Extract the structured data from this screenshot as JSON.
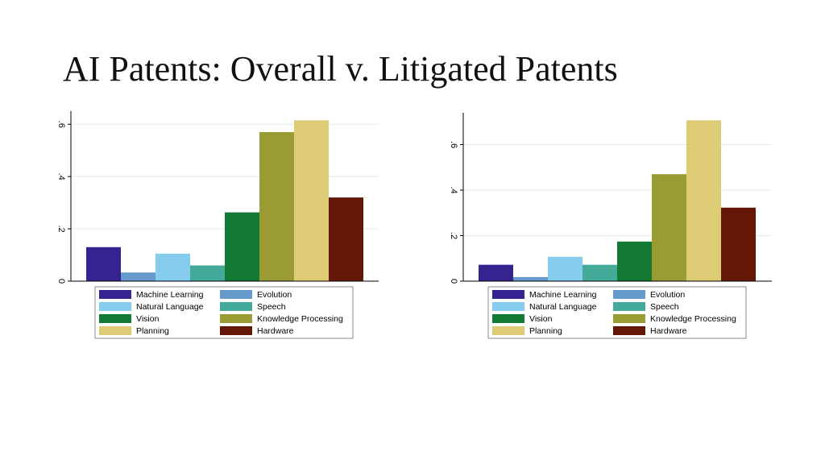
{
  "slide": {
    "title": "AI Patents: Overall v. Litigated Patents"
  },
  "colors": {
    "Machine Learning": "#35248f",
    "Evolution": "#6699cc",
    "Natural Language": "#86ccee",
    "Speech": "#44aa99",
    "Vision": "#137a36",
    "Knowledge Processing": "#9b9b33",
    "Planning": "#ddcb76",
    "Hardware": "#651707"
  },
  "chart_data": [
    {
      "type": "bar",
      "categories": [
        "Machine Learning",
        "Evolution",
        "Natural Language",
        "Speech",
        "Vision",
        "Knowledge Processing",
        "Planning",
        "Hardware"
      ],
      "values": [
        0.13,
        0.033,
        0.105,
        0.06,
        0.263,
        0.57,
        0.615,
        0.32
      ],
      "ylim": [
        0,
        0.65
      ],
      "yticks": [
        0,
        0.2,
        0.4,
        0.6
      ],
      "ytick_labels": [
        "0",
        ".2",
        ".4",
        ".6"
      ],
      "grid": true,
      "legend": "bottom",
      "legend_labels": [
        "Machine Learning",
        "Evolution",
        "Natural Language",
        "Speech",
        "Vision",
        "Knowledge Processing",
        "Planning",
        "Hardware"
      ]
    },
    {
      "type": "bar",
      "categories": [
        "Machine Learning",
        "Evolution",
        "Natural Language",
        "Speech",
        "Vision",
        "Knowledge Processing",
        "Planning",
        "Hardware"
      ],
      "values": [
        0.072,
        0.018,
        0.107,
        0.072,
        0.174,
        0.47,
        0.707,
        0.323
      ],
      "ylim": [
        0,
        0.74
      ],
      "yticks": [
        0,
        0.2,
        0.4,
        0.6
      ],
      "ytick_labels": [
        "0",
        ".2",
        ".4",
        ".6"
      ],
      "grid": true,
      "legend": "bottom",
      "legend_labels": [
        "Machine Learning",
        "Evolution",
        "Natural Language",
        "Speech",
        "Vision",
        "Knowledge Processing",
        "Planning",
        "Hardware"
      ]
    }
  ]
}
